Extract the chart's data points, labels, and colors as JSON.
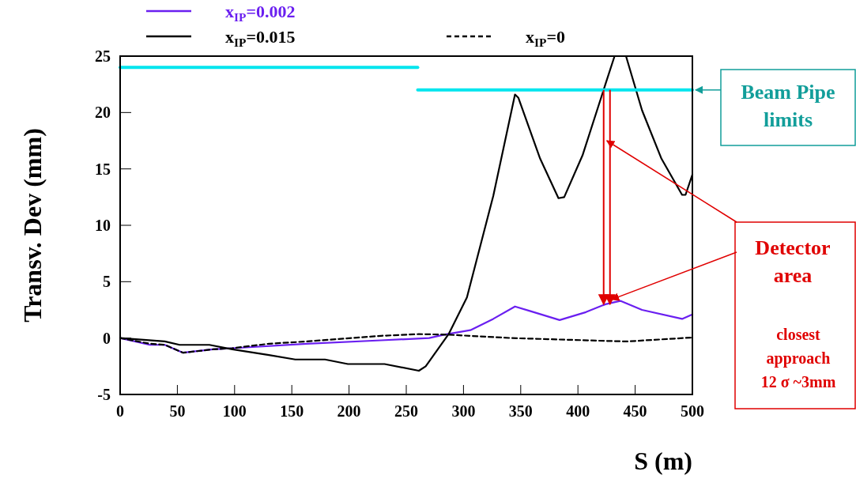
{
  "chart_data": {
    "type": "line",
    "xlabel": "S (m)",
    "ylabel": "Transv. Dev (mm)",
    "xlim": [
      0,
      500
    ],
    "xticks": [
      0,
      50,
      100,
      150,
      200,
      250,
      300,
      350,
      400,
      450,
      500
    ],
    "ylim": [
      -5,
      25
    ],
    "yticks": [
      -5,
      0,
      5,
      10,
      15,
      20,
      25
    ],
    "grid": false,
    "legend": "top",
    "marker": "none",
    "series": [
      {
        "name": "x$_{IP}$=0.002",
        "color": "#6a1ff0",
        "x": [
          0,
          26,
          39,
          55,
          81,
          98,
          163,
          228,
          270,
          283,
          306,
          326,
          345,
          358,
          384,
          407,
          424,
          437,
          456,
          491,
          500
        ],
        "values": [
          0,
          -0.6,
          -0.6,
          -1.3,
          -1.0,
          -0.9,
          -0.5,
          -0.2,
          0,
          0.3,
          0.7,
          1.7,
          2.8,
          2.4,
          1.6,
          2.3,
          3.0,
          3.3,
          2.5,
          1.7,
          2.1
        ]
      },
      {
        "name": "x$_{IP}$=0.015",
        "color": "#000000",
        "x": [
          0,
          39,
          52,
          78,
          98,
          130,
          153,
          179,
          199,
          231,
          261,
          267,
          287,
          303,
          326,
          345,
          348,
          367,
          383,
          388,
          404,
          424,
          432,
          442,
          456,
          473,
          491,
          494,
          500
        ],
        "values": [
          0,
          -0.3,
          -0.6,
          -0.6,
          -1.0,
          -1.5,
          -1.9,
          -1.9,
          -2.3,
          -2.3,
          -2.9,
          -2.5,
          0.35,
          3.6,
          12.6,
          21.6,
          21.3,
          15.9,
          12.4,
          12.5,
          16.2,
          22.5,
          25,
          25,
          20.2,
          15.9,
          12.7,
          12.7,
          14.5
        ]
      },
      {
        "name": "x$_{IP}$=0",
        "color": "#000000",
        "line_style": "dashed",
        "x": [
          0,
          26,
          39,
          55,
          81,
          98,
          130,
          163,
          228,
          261,
          287,
          342,
          424,
          443,
          500
        ],
        "values": [
          0,
          -0.5,
          -0.6,
          -1.3,
          -1.0,
          -0.9,
          -0.5,
          -0.3,
          0.2,
          0.35,
          0.3,
          0,
          -0.25,
          -0.3,
          0.05
        ]
      },
      {
        "color": "#00e5ee",
        "x": [
          0,
          260
        ],
        "values": [
          24,
          24
        ]
      },
      {
        "color": "#00e5ee",
        "x": [
          260,
          500
        ],
        "values": [
          22,
          22
        ]
      }
    ],
    "annotations": [
      {
        "text": "Beam Pipe limits",
        "x": 500,
        "y": 22
      },
      {
        "text": "Detector area",
        "x": 428,
        "y": 3
      },
      "closest approach 12 σ ~3mm"
    ]
  }
}
